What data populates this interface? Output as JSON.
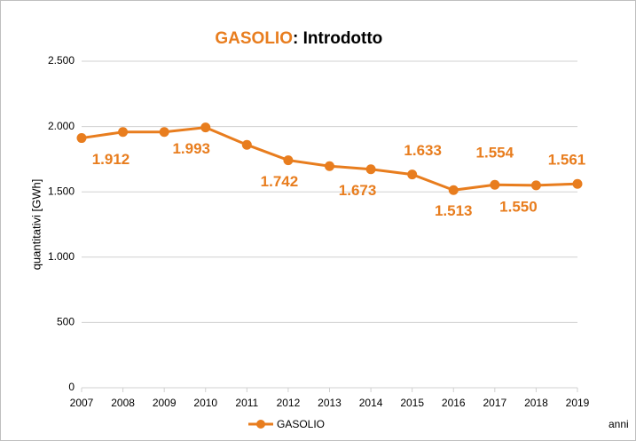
{
  "chart_data": {
    "type": "line",
    "title": [
      "GASOLIO",
      ": Introdotto"
    ],
    "y_label": "quantitativi [GWh]",
    "x_label": "anni",
    "categories": [
      "2007",
      "2008",
      "2009",
      "2010",
      "2011",
      "2012",
      "2013",
      "2014",
      "2015",
      "2016",
      "2017",
      "2018",
      "2019"
    ],
    "series": [
      {
        "name": "GASOLIO",
        "color": "#e87d1e",
        "values": [
          1912,
          1958,
          1958,
          1993,
          1860,
          1742,
          1697,
          1673,
          1633,
          1513,
          1554,
          1550,
          1561
        ],
        "value_labels": [
          "1.912",
          null,
          null,
          "1.993",
          null,
          "1.742",
          null,
          "1.673",
          "1.633",
          "1.513",
          "1.554",
          "1.550",
          "1.561"
        ]
      }
    ],
    "ylim": [
      0,
      2500
    ],
    "yticks": [
      0,
      500,
      {
        "value": 1000,
        "label": "1.000"
      },
      {
        "value": 1500,
        "label": "1.500"
      },
      {
        "value": 2000,
        "label": "2.000"
      },
      {
        "value": 2500,
        "label": "2.500"
      }
    ],
    "grid": true,
    "legend": "bottom"
  }
}
